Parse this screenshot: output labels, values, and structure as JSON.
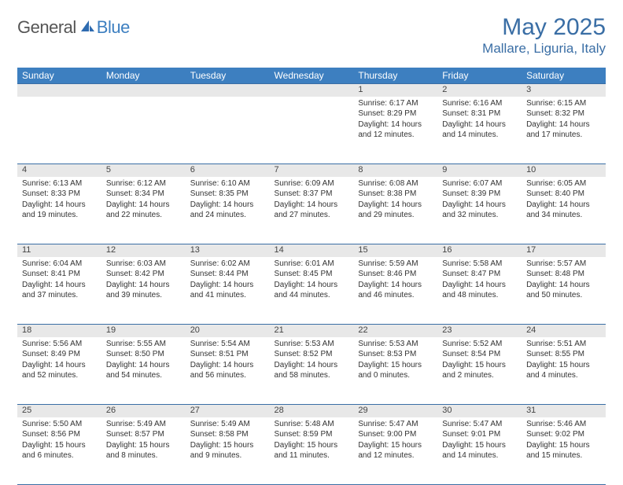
{
  "logo": {
    "text1": "General",
    "text2": "Blue"
  },
  "title": "May 2025",
  "location": "Mallare, Liguria, Italy",
  "colors": {
    "header_bg": "#3d7fc0",
    "header_text": "#ffffff",
    "title_color": "#3a6ea5",
    "daynum_bg": "#e8e8e8",
    "rule": "#3a6ea5"
  },
  "weekdays": [
    "Sunday",
    "Monday",
    "Tuesday",
    "Wednesday",
    "Thursday",
    "Friday",
    "Saturday"
  ],
  "weeks": [
    [
      null,
      null,
      null,
      null,
      {
        "n": "1",
        "sr": "6:17 AM",
        "ss": "8:29 PM",
        "dl": "14 hours and 12 minutes."
      },
      {
        "n": "2",
        "sr": "6:16 AM",
        "ss": "8:31 PM",
        "dl": "14 hours and 14 minutes."
      },
      {
        "n": "3",
        "sr": "6:15 AM",
        "ss": "8:32 PM",
        "dl": "14 hours and 17 minutes."
      }
    ],
    [
      {
        "n": "4",
        "sr": "6:13 AM",
        "ss": "8:33 PM",
        "dl": "14 hours and 19 minutes."
      },
      {
        "n": "5",
        "sr": "6:12 AM",
        "ss": "8:34 PM",
        "dl": "14 hours and 22 minutes."
      },
      {
        "n": "6",
        "sr": "6:10 AM",
        "ss": "8:35 PM",
        "dl": "14 hours and 24 minutes."
      },
      {
        "n": "7",
        "sr": "6:09 AM",
        "ss": "8:37 PM",
        "dl": "14 hours and 27 minutes."
      },
      {
        "n": "8",
        "sr": "6:08 AM",
        "ss": "8:38 PM",
        "dl": "14 hours and 29 minutes."
      },
      {
        "n": "9",
        "sr": "6:07 AM",
        "ss": "8:39 PM",
        "dl": "14 hours and 32 minutes."
      },
      {
        "n": "10",
        "sr": "6:05 AM",
        "ss": "8:40 PM",
        "dl": "14 hours and 34 minutes."
      }
    ],
    [
      {
        "n": "11",
        "sr": "6:04 AM",
        "ss": "8:41 PM",
        "dl": "14 hours and 37 minutes."
      },
      {
        "n": "12",
        "sr": "6:03 AM",
        "ss": "8:42 PM",
        "dl": "14 hours and 39 minutes."
      },
      {
        "n": "13",
        "sr": "6:02 AM",
        "ss": "8:44 PM",
        "dl": "14 hours and 41 minutes."
      },
      {
        "n": "14",
        "sr": "6:01 AM",
        "ss": "8:45 PM",
        "dl": "14 hours and 44 minutes."
      },
      {
        "n": "15",
        "sr": "5:59 AM",
        "ss": "8:46 PM",
        "dl": "14 hours and 46 minutes."
      },
      {
        "n": "16",
        "sr": "5:58 AM",
        "ss": "8:47 PM",
        "dl": "14 hours and 48 minutes."
      },
      {
        "n": "17",
        "sr": "5:57 AM",
        "ss": "8:48 PM",
        "dl": "14 hours and 50 minutes."
      }
    ],
    [
      {
        "n": "18",
        "sr": "5:56 AM",
        "ss": "8:49 PM",
        "dl": "14 hours and 52 minutes."
      },
      {
        "n": "19",
        "sr": "5:55 AM",
        "ss": "8:50 PM",
        "dl": "14 hours and 54 minutes."
      },
      {
        "n": "20",
        "sr": "5:54 AM",
        "ss": "8:51 PM",
        "dl": "14 hours and 56 minutes."
      },
      {
        "n": "21",
        "sr": "5:53 AM",
        "ss": "8:52 PM",
        "dl": "14 hours and 58 minutes."
      },
      {
        "n": "22",
        "sr": "5:53 AM",
        "ss": "8:53 PM",
        "dl": "15 hours and 0 minutes."
      },
      {
        "n": "23",
        "sr": "5:52 AM",
        "ss": "8:54 PM",
        "dl": "15 hours and 2 minutes."
      },
      {
        "n": "24",
        "sr": "5:51 AM",
        "ss": "8:55 PM",
        "dl": "15 hours and 4 minutes."
      }
    ],
    [
      {
        "n": "25",
        "sr": "5:50 AM",
        "ss": "8:56 PM",
        "dl": "15 hours and 6 minutes."
      },
      {
        "n": "26",
        "sr": "5:49 AM",
        "ss": "8:57 PM",
        "dl": "15 hours and 8 minutes."
      },
      {
        "n": "27",
        "sr": "5:49 AM",
        "ss": "8:58 PM",
        "dl": "15 hours and 9 minutes."
      },
      {
        "n": "28",
        "sr": "5:48 AM",
        "ss": "8:59 PM",
        "dl": "15 hours and 11 minutes."
      },
      {
        "n": "29",
        "sr": "5:47 AM",
        "ss": "9:00 PM",
        "dl": "15 hours and 12 minutes."
      },
      {
        "n": "30",
        "sr": "5:47 AM",
        "ss": "9:01 PM",
        "dl": "15 hours and 14 minutes."
      },
      {
        "n": "31",
        "sr": "5:46 AM",
        "ss": "9:02 PM",
        "dl": "15 hours and 15 minutes."
      }
    ]
  ],
  "labels": {
    "sunrise": "Sunrise: ",
    "sunset": "Sunset: ",
    "daylight": "Daylight: "
  }
}
